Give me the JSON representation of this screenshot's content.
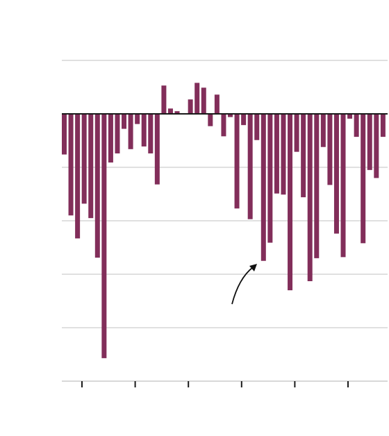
{
  "colors": {
    "bar": "#822e5a",
    "gridline": "#d6d6d6",
    "zero_line": "#1a1a1a",
    "axis_line": "#cccccc",
    "tick": "#1a1a1a",
    "annotation_arrow": "#111111",
    "background": "#ffffff"
  },
  "chart_data": {
    "type": "bar",
    "title": "",
    "xlabel": "",
    "ylabel": "",
    "grid": true,
    "legend": "none",
    "x_major_ticks": 6,
    "ylim": [
      -5,
      1
    ],
    "gridline_values": [
      1,
      0,
      -1,
      -2,
      -3,
      -4,
      -5
    ],
    "series": [
      {
        "values": [
          -0.76,
          -1.9,
          -2.33,
          -1.68,
          -1.95,
          -2.69,
          -4.57,
          -0.91,
          -0.74,
          -0.28,
          -0.66,
          -0.19,
          -0.61,
          -0.74,
          -1.32,
          0.53,
          0.1,
          0.05,
          0.0,
          0.27,
          0.58,
          0.49,
          -0.23,
          0.36,
          -0.42,
          -0.06,
          -1.77,
          -0.21,
          -1.97,
          -0.49,
          -2.75,
          -2.41,
          -1.49,
          -1.51,
          -3.3,
          -0.71,
          -1.56,
          -3.13,
          -2.7,
          -0.62,
          -1.33,
          -2.24,
          -2.68,
          -0.09,
          -0.43,
          -2.42,
          -1.05,
          -1.2,
          -0.43
        ]
      }
    ],
    "annotations": [
      {
        "type": "arrow",
        "text": ""
      }
    ]
  }
}
